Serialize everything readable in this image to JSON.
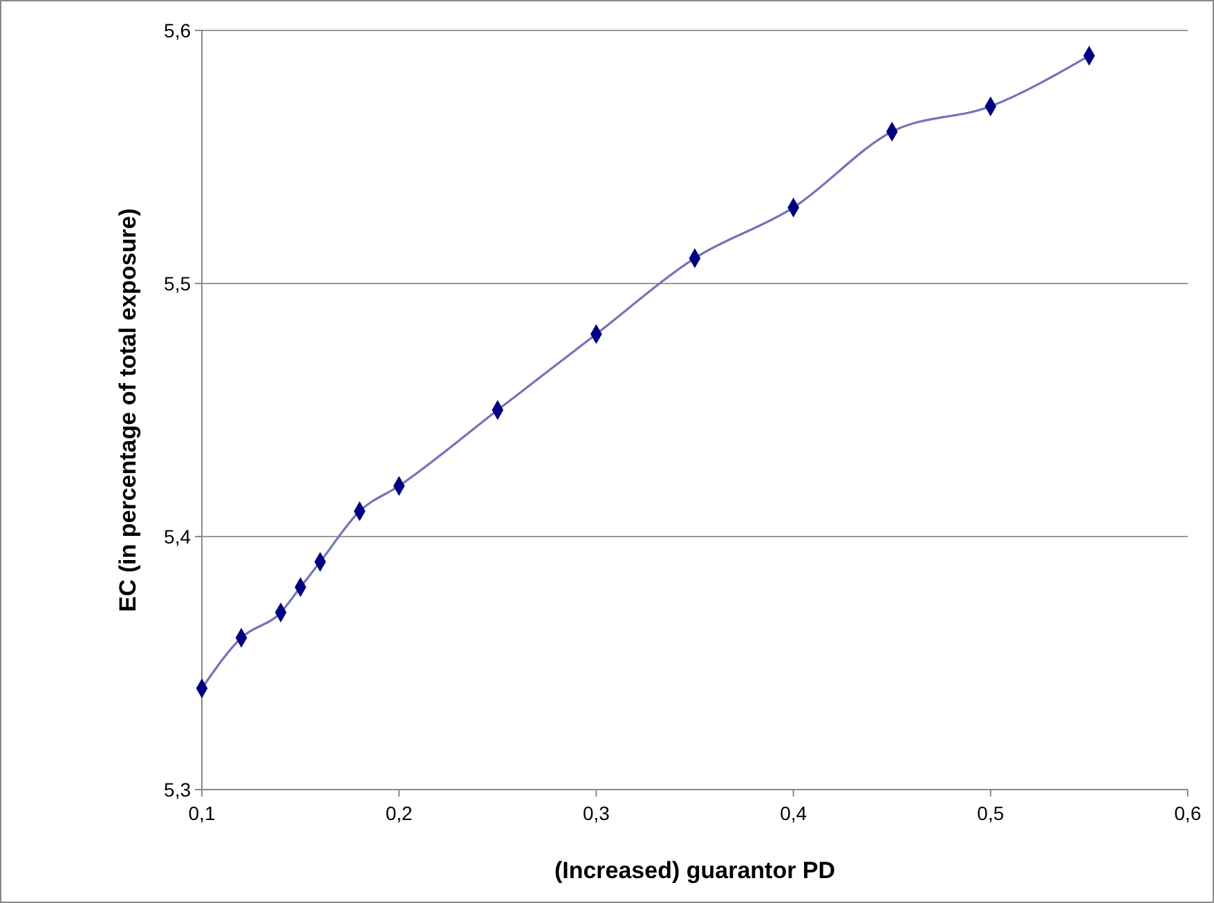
{
  "chart_data": {
    "type": "line",
    "xlabel": "(Increased) guarantor PD",
    "ylabel": "EC (in percentage of total exposure)",
    "x": [
      0.1,
      0.12,
      0.14,
      0.15,
      0.16,
      0.18,
      0.2,
      0.25,
      0.3,
      0.35,
      0.4,
      0.45,
      0.5,
      0.55
    ],
    "series": [
      {
        "color": "#000080",
        "values": [
          5.34,
          5.36,
          5.37,
          5.38,
          5.39,
          5.41,
          5.42,
          5.45,
          5.48,
          5.51,
          5.53,
          5.56,
          5.57,
          5.59
        ]
      }
    ],
    "xlim": [
      0.1,
      0.6
    ],
    "ylim": [
      5.3,
      5.6
    ],
    "xticks": [
      {
        "value": 0.1,
        "label": "0,1"
      },
      {
        "value": 0.2,
        "label": "0,2"
      },
      {
        "value": 0.3,
        "label": "0,3"
      },
      {
        "value": 0.4,
        "label": "0,4"
      },
      {
        "value": 0.5,
        "label": "0,5"
      },
      {
        "value": 0.6,
        "label": "0,6"
      }
    ],
    "yticks": [
      {
        "value": 5.3,
        "label": "5,3"
      },
      {
        "value": 5.4,
        "label": "5,4"
      },
      {
        "value": 5.5,
        "label": "5,5"
      },
      {
        "value": 5.6,
        "label": "5,6"
      }
    ],
    "grid": "y",
    "marker": "diamond",
    "line_style": "solid"
  }
}
